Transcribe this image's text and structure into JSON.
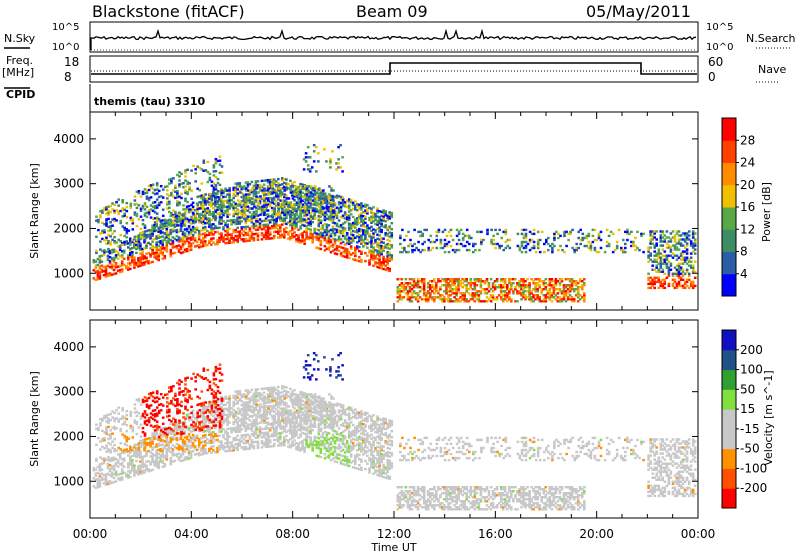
{
  "header": {
    "station": "Blackstone (fitACF)",
    "beam": "Beam 09",
    "date": "05/May/2011"
  },
  "strips": {
    "nsky_label": "N.Sky",
    "nsearch_label": "N.Search",
    "freq_label_1": "Freq.",
    "freq_label_2": "[MHz]",
    "nave_label": "Nave",
    "cpid_label": "CPID",
    "cpid_value": "themis (tau) 3310",
    "noise_ticks": [
      "10^5",
      "10^0"
    ],
    "freq_ticks": [
      "18",
      "8"
    ],
    "nave_ticks": [
      "60",
      "0"
    ]
  },
  "colors": {
    "frame": "#000000",
    "power_scale": [
      "#0000ff",
      "#2a5fa8",
      "#3c8c64",
      "#58a848",
      "#f0c000",
      "#ff8c00",
      "#ff4000",
      "#ff0000"
    ],
    "velocity_scale": [
      "#ff0000",
      "#ff5000",
      "#ff9000",
      "#c8c8c8",
      "#c8c8c8",
      "#80e040",
      "#30a030",
      "#205088",
      "#1010c0"
    ]
  },
  "chart_data": [
    {
      "type": "heatmap",
      "title": "",
      "xlabel": "Time UT",
      "ylabel": "Slant Range [km]",
      "x_ticks": [
        "00:00",
        "04:00",
        "08:00",
        "12:00",
        "16:00",
        "20:00",
        "00:00"
      ],
      "xlim_hours": [
        0,
        24
      ],
      "y_ticks": [
        1000,
        2000,
        3000,
        4000
      ],
      "ylim_km": [
        180,
        4600
      ],
      "colorbar_label": "Power [dB]",
      "colorbar_ticks": [
        4,
        8,
        12,
        16,
        20,
        24,
        28
      ],
      "colorbar_range": [
        0,
        32
      ]
    },
    {
      "type": "heatmap",
      "title": "",
      "xlabel": "Time UT",
      "ylabel": "Slant Range [km]",
      "x_ticks": [
        "00:00",
        "04:00",
        "08:00",
        "12:00",
        "16:00",
        "20:00",
        "00:00"
      ],
      "xlim_hours": [
        0,
        24
      ],
      "y_ticks": [
        1000,
        2000,
        3000,
        4000
      ],
      "ylim_km": [
        180,
        4600
      ],
      "colorbar_label": "Velocity [m s^-1]",
      "colorbar_ticks": [
        -200,
        -100,
        -50,
        -15,
        15,
        50,
        100,
        200
      ]
    }
  ]
}
